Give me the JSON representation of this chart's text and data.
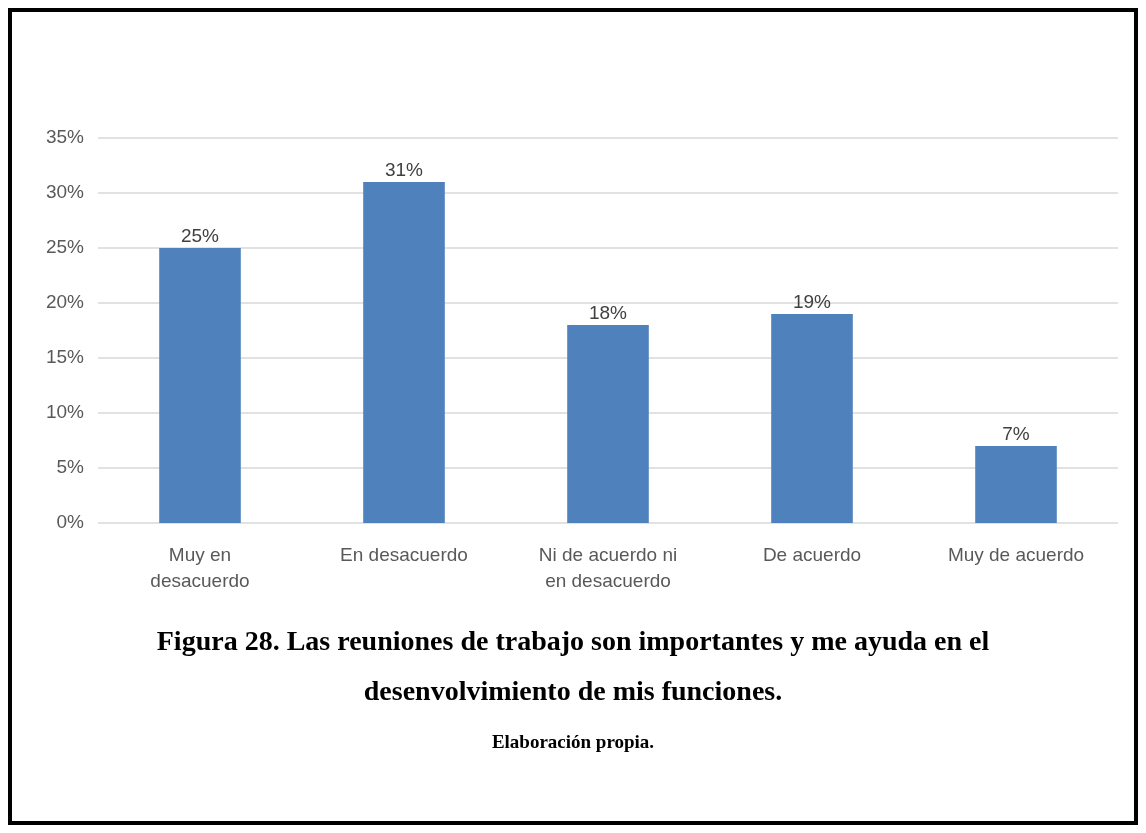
{
  "chart_data": {
    "type": "bar",
    "title": "Figura 28. Las reuniones de trabajo son importantes y me ayuda en el desenvolvimiento de mis funciones.",
    "annotations": [
      "Elaboración propia."
    ],
    "categories": [
      "Muy en desacuerdo",
      "En desacuerdo",
      "Ni de acuerdo ni en desacuerdo",
      "De acuerdo",
      "Muy de acuerdo"
    ],
    "values": [
      25,
      31,
      18,
      19,
      7
    ],
    "color": "#4f81bd",
    "ylim": [
      0,
      35
    ],
    "yticks": [
      {
        "value": 0,
        "label": "0%"
      },
      {
        "value": 5,
        "label": "5%"
      },
      {
        "value": 10,
        "label": "10%"
      },
      {
        "value": 15,
        "label": "15%"
      },
      {
        "value": 20,
        "label": "20%"
      },
      {
        "value": 25,
        "label": "25%"
      },
      {
        "value": 30,
        "label": "30%"
      },
      {
        "value": 35,
        "label": "35%"
      }
    ],
    "value_labels": [
      "25%",
      "31%",
      "18%",
      "19%",
      "7%"
    ],
    "grid": "y"
  }
}
